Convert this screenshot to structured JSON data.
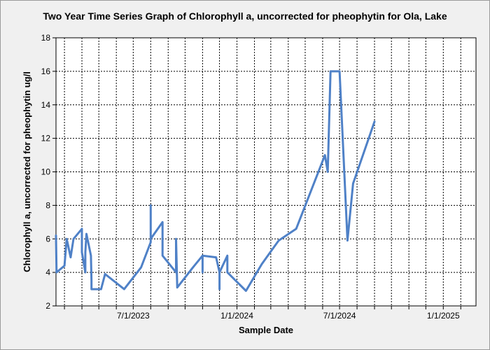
{
  "chart_data": {
    "type": "line",
    "title": "Two Year Time Series Graph of Chlorophyll a, uncorrected for pheophytin for Ola, Lake",
    "xlabel": "Sample Date",
    "ylabel": "Chlorophyll a, uncorrected for pheophytin ug/l",
    "xlim": [
      "2023-02-14",
      "2025-02-28"
    ],
    "ylim": [
      2,
      18
    ],
    "y_ticks": [
      "2",
      "4",
      "6",
      "8",
      "10",
      "12",
      "14",
      "16",
      "18"
    ],
    "x_tick_labels": [
      {
        "date": "2023-07-01",
        "label": "7/1/2023"
      },
      {
        "date": "2024-01-01",
        "label": "1/1/2024"
      },
      {
        "date": "2024-07-01",
        "label": "7/1/2024"
      },
      {
        "date": "2025-01-01",
        "label": "1/1/2025"
      }
    ],
    "grid": true,
    "line_color": "#4f81c7",
    "series": [
      {
        "name": "",
        "points": [
          [
            "2023-02-14",
            6.2
          ],
          [
            "2023-02-15",
            4.0
          ],
          [
            "2023-03-01",
            4.4
          ],
          [
            "2023-03-05",
            6.0
          ],
          [
            "2023-03-12",
            4.9
          ],
          [
            "2023-03-17",
            6.0
          ],
          [
            "2023-04-01",
            6.6
          ],
          [
            "2023-04-01",
            5.2
          ],
          [
            "2023-04-07",
            4.0
          ],
          [
            "2023-04-07",
            5.2
          ],
          [
            "2023-04-09",
            6.3
          ],
          [
            "2023-04-17",
            5.0
          ],
          [
            "2023-04-18",
            3.5
          ],
          [
            "2023-04-18",
            3.0
          ],
          [
            "2023-05-05",
            3.0
          ],
          [
            "2023-05-12",
            3.9
          ],
          [
            "2023-06-15",
            3.0
          ],
          [
            "2023-07-15",
            4.3
          ],
          [
            "2023-08-01",
            5.8
          ],
          [
            "2023-08-01",
            8.0
          ],
          [
            "2023-08-01",
            6.0
          ],
          [
            "2023-08-22",
            7.0
          ],
          [
            "2023-08-22",
            5.0
          ],
          [
            "2023-09-15",
            4.0
          ],
          [
            "2023-09-15",
            6.0
          ],
          [
            "2023-09-17",
            3.1
          ],
          [
            "2023-10-15",
            4.3
          ],
          [
            "2023-11-01",
            5.0
          ],
          [
            "2023-11-01",
            4.0
          ],
          [
            "2023-11-01",
            5.0
          ],
          [
            "2023-11-25",
            4.9
          ],
          [
            "2023-12-01",
            4.0
          ],
          [
            "2023-12-01",
            3.0
          ],
          [
            "2023-12-01",
            4.0
          ],
          [
            "2023-12-15",
            5.0
          ],
          [
            "2023-12-15",
            4.0
          ],
          [
            "2024-01-17",
            2.9
          ],
          [
            "2024-02-14",
            4.5
          ],
          [
            "2024-03-15",
            5.9
          ],
          [
            "2024-04-15",
            6.6
          ],
          [
            "2024-06-05",
            11.0
          ],
          [
            "2024-06-10",
            10.0
          ],
          [
            "2024-06-15",
            16.0
          ],
          [
            "2024-07-01",
            16.0
          ],
          [
            "2024-07-15",
            5.9
          ],
          [
            "2024-07-25",
            9.3
          ],
          [
            "2024-09-01",
            13.0
          ]
        ]
      }
    ]
  }
}
